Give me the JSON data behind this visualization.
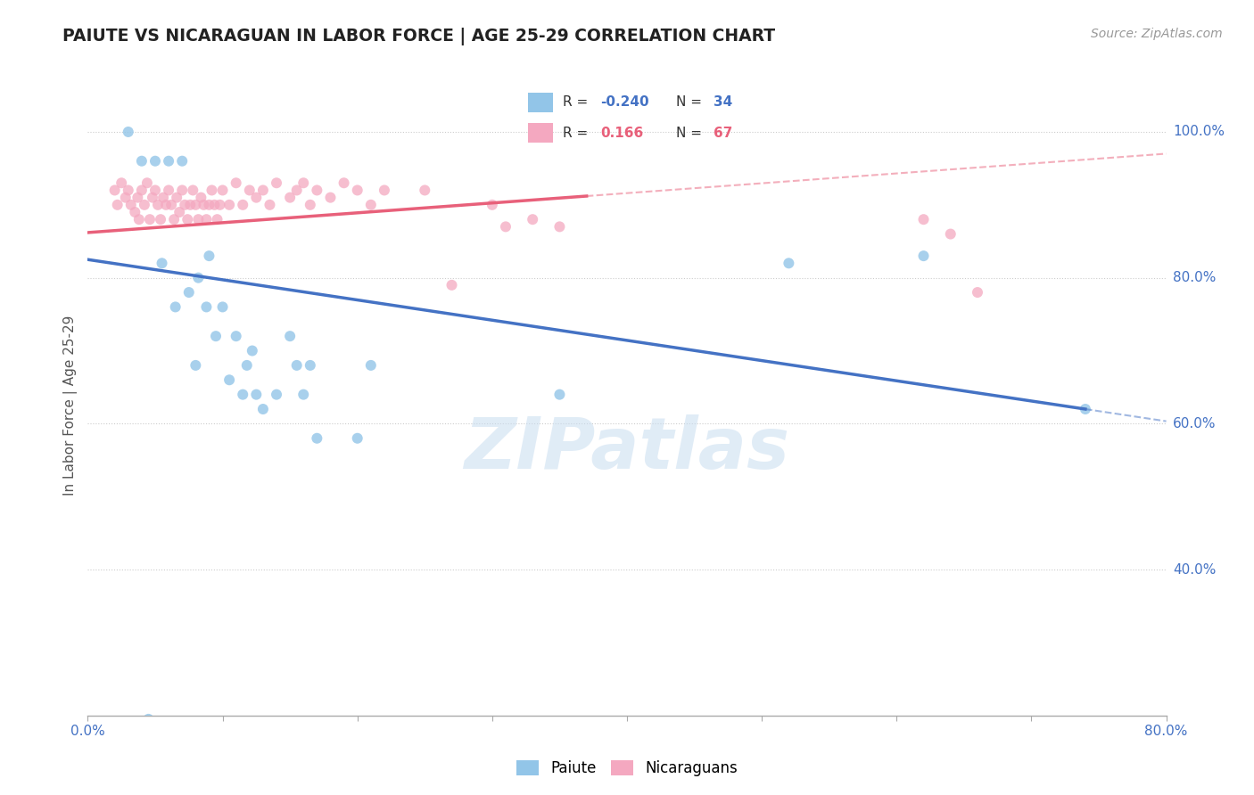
{
  "title": "PAIUTE VS NICARAGUAN IN LABOR FORCE | AGE 25-29 CORRELATION CHART",
  "source_text": "Source: ZipAtlas.com",
  "ylabel": "In Labor Force | Age 25-29",
  "xlim": [
    0.0,
    0.8
  ],
  "ylim": [
    0.2,
    1.05
  ],
  "xticks": [
    0.0,
    0.1,
    0.2,
    0.3,
    0.4,
    0.5,
    0.6,
    0.7,
    0.8
  ],
  "xticklabels": [
    "0.0%",
    "",
    "",
    "",
    "",
    "",
    "",
    "",
    "80.0%"
  ],
  "yticks": [
    0.4,
    0.6,
    0.8,
    1.0
  ],
  "yticklabels": [
    "40.0%",
    "60.0%",
    "80.0%",
    "100.0%"
  ],
  "watermark": "ZIPatlas",
  "legend": {
    "paiute_label": "Paiute",
    "nicaraguan_label": "Nicaraguans",
    "paiute_R": -0.24,
    "paiute_N": 34,
    "nicaraguan_R": 0.166,
    "nicaraguan_N": 67
  },
  "paiute_color": "#92C5E8",
  "nicaraguan_color": "#F4A8C0",
  "paiute_line_color": "#4472C4",
  "nicaraguan_line_color": "#E8607A",
  "background_color": "#ffffff",
  "grid_color": "#cccccc",
  "title_color": "#222222",
  "axis_label_color": "#555555",
  "tick_label_color": "#4472C4",
  "paiute_trend_x0": 0.0,
  "paiute_trend_y0": 0.825,
  "paiute_trend_x1": 0.74,
  "paiute_trend_y1": 0.62,
  "nicaraguan_trend_x0": 0.0,
  "nicaraguan_trend_y0": 0.862,
  "nicaraguan_trend_x1": 0.37,
  "nicaraguan_trend_y1": 0.912,
  "paiute_x": [
    0.03,
    0.04,
    0.045,
    0.05,
    0.055,
    0.06,
    0.065,
    0.07,
    0.075,
    0.08,
    0.082,
    0.088,
    0.09,
    0.095,
    0.1,
    0.105,
    0.11,
    0.115,
    0.118,
    0.122,
    0.125,
    0.13,
    0.14,
    0.15,
    0.155,
    0.16,
    0.165,
    0.17,
    0.2,
    0.21,
    0.35,
    0.52,
    0.62,
    0.74
  ],
  "paiute_y": [
    1.0,
    0.96,
    0.195,
    0.96,
    0.82,
    0.96,
    0.76,
    0.96,
    0.78,
    0.68,
    0.8,
    0.76,
    0.83,
    0.72,
    0.76,
    0.66,
    0.72,
    0.64,
    0.68,
    0.7,
    0.64,
    0.62,
    0.64,
    0.72,
    0.68,
    0.64,
    0.68,
    0.58,
    0.58,
    0.68,
    0.64,
    0.82,
    0.83,
    0.62
  ],
  "nicaraguan_x": [
    0.02,
    0.022,
    0.025,
    0.028,
    0.03,
    0.032,
    0.035,
    0.037,
    0.038,
    0.04,
    0.042,
    0.044,
    0.046,
    0.048,
    0.05,
    0.052,
    0.054,
    0.056,
    0.058,
    0.06,
    0.062,
    0.064,
    0.066,
    0.068,
    0.07,
    0.072,
    0.074,
    0.076,
    0.078,
    0.08,
    0.082,
    0.084,
    0.086,
    0.088,
    0.09,
    0.092,
    0.094,
    0.096,
    0.098,
    0.1,
    0.105,
    0.11,
    0.115,
    0.12,
    0.125,
    0.13,
    0.135,
    0.14,
    0.15,
    0.155,
    0.16,
    0.165,
    0.17,
    0.18,
    0.19,
    0.2,
    0.21,
    0.22,
    0.25,
    0.27,
    0.3,
    0.31,
    0.33,
    0.35,
    0.62,
    0.64,
    0.66
  ],
  "nicaraguan_y": [
    0.92,
    0.9,
    0.93,
    0.91,
    0.92,
    0.9,
    0.89,
    0.91,
    0.88,
    0.92,
    0.9,
    0.93,
    0.88,
    0.91,
    0.92,
    0.9,
    0.88,
    0.91,
    0.9,
    0.92,
    0.9,
    0.88,
    0.91,
    0.89,
    0.92,
    0.9,
    0.88,
    0.9,
    0.92,
    0.9,
    0.88,
    0.91,
    0.9,
    0.88,
    0.9,
    0.92,
    0.9,
    0.88,
    0.9,
    0.92,
    0.9,
    0.93,
    0.9,
    0.92,
    0.91,
    0.92,
    0.9,
    0.93,
    0.91,
    0.92,
    0.93,
    0.9,
    0.92,
    0.91,
    0.93,
    0.92,
    0.9,
    0.92,
    0.92,
    0.79,
    0.9,
    0.87,
    0.88,
    0.87,
    0.88,
    0.86,
    0.78
  ]
}
